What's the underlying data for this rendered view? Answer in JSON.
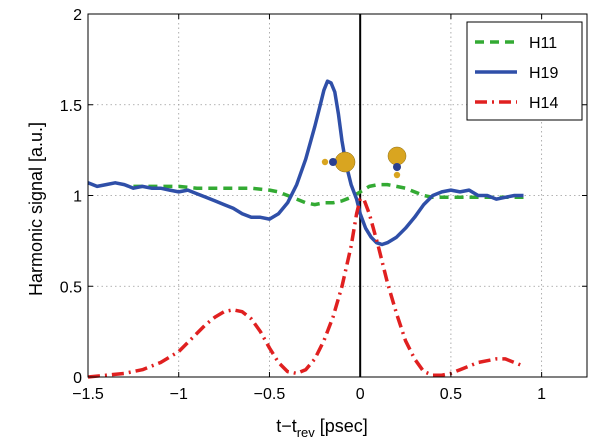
{
  "chart_data": {
    "type": "line",
    "xlabel_main": "t−t",
    "xlabel_sub": "rev",
    "xlabel_unit": " [psec]",
    "ylabel": "Harmonic signal [a.u.]",
    "xlim": [
      -1.5,
      1.25
    ],
    "ylim": [
      0,
      2
    ],
    "x_ticks": [
      -1.5,
      -1,
      -0.5,
      0,
      0.5,
      1
    ],
    "x_tick_labels": [
      "−1.5",
      "−1",
      "−0.5",
      "0",
      "0.5",
      "1"
    ],
    "y_ticks": [
      0,
      0.5,
      1,
      1.5,
      2
    ],
    "y_tick_labels": [
      "0",
      "0.5",
      "1",
      "1.5",
      "2"
    ],
    "grid": true,
    "legend_position": "top-right",
    "vertical_line_at": 0,
    "series": [
      {
        "name": "H11",
        "color": "#33aa33",
        "style": "dashed",
        "x": [
          -1.25,
          -1.1,
          -1.0,
          -0.9,
          -0.8,
          -0.7,
          -0.6,
          -0.5,
          -0.45,
          -0.4,
          -0.35,
          -0.3,
          -0.25,
          -0.2,
          -0.15,
          -0.1,
          -0.05,
          0.0,
          0.05,
          0.1,
          0.15,
          0.2,
          0.25,
          0.3,
          0.35,
          0.4,
          0.45,
          0.5,
          0.6,
          0.7,
          0.8,
          0.9
        ],
        "y": [
          1.05,
          1.05,
          1.05,
          1.04,
          1.04,
          1.04,
          1.04,
          1.03,
          1.02,
          1.0,
          0.98,
          0.96,
          0.95,
          0.96,
          0.96,
          0.97,
          0.99,
          1.02,
          1.05,
          1.06,
          1.06,
          1.05,
          1.04,
          1.02,
          1.0,
          0.99,
          0.99,
          0.99,
          0.99,
          0.99,
          0.99,
          0.99
        ]
      },
      {
        "name": "H19",
        "color": "#2f4fa8",
        "style": "solid",
        "x": [
          -1.5,
          -1.45,
          -1.4,
          -1.35,
          -1.3,
          -1.25,
          -1.2,
          -1.15,
          -1.1,
          -1.05,
          -1.0,
          -0.95,
          -0.9,
          -0.85,
          -0.8,
          -0.75,
          -0.7,
          -0.65,
          -0.6,
          -0.55,
          -0.5,
          -0.45,
          -0.4,
          -0.35,
          -0.3,
          -0.25,
          -0.22,
          -0.2,
          -0.18,
          -0.16,
          -0.14,
          -0.12,
          -0.1,
          -0.08,
          -0.05,
          -0.02,
          0.0,
          0.03,
          0.06,
          0.09,
          0.12,
          0.15,
          0.2,
          0.25,
          0.3,
          0.35,
          0.4,
          0.45,
          0.5,
          0.55,
          0.6,
          0.65,
          0.7,
          0.75,
          0.8,
          0.85,
          0.9
        ],
        "y": [
          1.07,
          1.05,
          1.06,
          1.07,
          1.06,
          1.04,
          1.05,
          1.04,
          1.04,
          1.03,
          1.02,
          1.03,
          1.01,
          0.99,
          0.97,
          0.95,
          0.93,
          0.9,
          0.88,
          0.88,
          0.87,
          0.9,
          0.96,
          1.06,
          1.2,
          1.38,
          1.5,
          1.58,
          1.63,
          1.62,
          1.57,
          1.45,
          1.3,
          1.18,
          1.06,
          0.98,
          0.9,
          0.82,
          0.77,
          0.74,
          0.73,
          0.74,
          0.77,
          0.82,
          0.88,
          0.95,
          1.0,
          1.02,
          1.03,
          1.02,
          1.03,
          1.0,
          1.0,
          0.98,
          0.99,
          1.0,
          1.0
        ]
      },
      {
        "name": "H14",
        "color": "#e02020",
        "style": "dashdot",
        "x": [
          -1.5,
          -1.4,
          -1.3,
          -1.2,
          -1.1,
          -1.0,
          -0.95,
          -0.9,
          -0.85,
          -0.8,
          -0.75,
          -0.7,
          -0.65,
          -0.6,
          -0.55,
          -0.5,
          -0.45,
          -0.4,
          -0.35,
          -0.3,
          -0.25,
          -0.2,
          -0.15,
          -0.1,
          -0.05,
          -0.02,
          0.0,
          0.02,
          0.05,
          0.1,
          0.15,
          0.2,
          0.25,
          0.3,
          0.35,
          0.4,
          0.45,
          0.5,
          0.55,
          0.6,
          0.65,
          0.7,
          0.75,
          0.8,
          0.85,
          0.9
        ],
        "y": [
          0.0,
          0.01,
          0.02,
          0.04,
          0.08,
          0.14,
          0.19,
          0.24,
          0.29,
          0.33,
          0.36,
          0.37,
          0.36,
          0.32,
          0.25,
          0.16,
          0.08,
          0.03,
          0.02,
          0.04,
          0.1,
          0.2,
          0.33,
          0.5,
          0.72,
          0.9,
          0.98,
          0.98,
          0.9,
          0.72,
          0.52,
          0.35,
          0.2,
          0.1,
          0.03,
          0.01,
          0.01,
          0.02,
          0.04,
          0.06,
          0.08,
          0.09,
          0.1,
          0.1,
          0.08,
          0.06
        ]
      }
    ]
  }
}
